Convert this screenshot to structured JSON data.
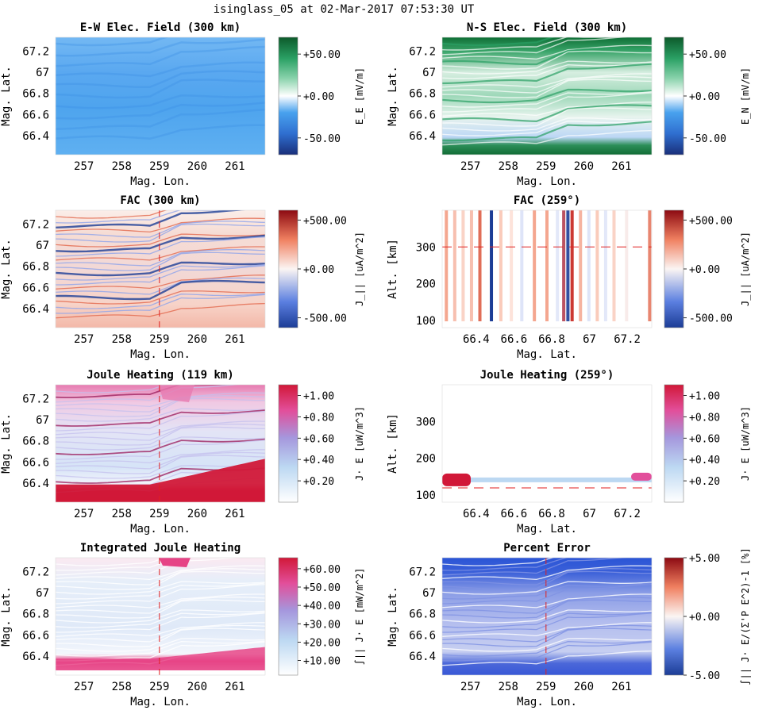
{
  "suptitle": "isinglass_05 at 02-Mar-2017 07:53:30 UT",
  "chart_data": [
    {
      "type": "heatmap",
      "title": "E-W Elec. Field (300 km)",
      "xlabel": "Mag. Lon.",
      "ylabel": "Mag. Lat.",
      "xticks": [
        "257",
        "258",
        "259",
        "260",
        "261"
      ],
      "yticks": [
        "66.4",
        "66.6",
        "66.8",
        "67",
        "67.2"
      ],
      "xlim": [
        256.25,
        261.8
      ],
      "ylim": [
        66.22,
        67.33
      ],
      "colormap": "blue-white-green",
      "colorbar": {
        "label": "E_E [mV/m]",
        "ticks": [
          "+50.00",
          "+0.00",
          "-50.00"
        ],
        "range": [
          -70,
          70
        ]
      },
      "field_values": {
        "mean": -30,
        "north_band": -35,
        "south_band": -25
      }
    },
    {
      "type": "heatmap",
      "title": "N-S Elec. Field (300 km)",
      "xlabel": "Mag. Lon.",
      "ylabel": "Mag. Lat.",
      "xticks": [
        "257",
        "258",
        "259",
        "260",
        "261"
      ],
      "yticks": [
        "66.4",
        "66.6",
        "66.8",
        "67",
        "67.2"
      ],
      "xlim": [
        256.25,
        261.8
      ],
      "ylim": [
        66.22,
        67.33
      ],
      "colormap": "blue-white-green",
      "colorbar": {
        "label": "E_N [mV/m]",
        "ticks": [
          "+50.00",
          "+0.00",
          "-50.00"
        ],
        "range": [
          -70,
          70
        ]
      },
      "field_values": {
        "north_band": 60,
        "middle": 15,
        "south_band": 55
      }
    },
    {
      "type": "heatmap",
      "title": "FAC (300 km)",
      "xlabel": "Mag. Lon.",
      "ylabel": "Mag. Lat.",
      "xticks": [
        "257",
        "258",
        "259",
        "260",
        "261"
      ],
      "yticks": [
        "66.4",
        "66.6",
        "66.8",
        "67",
        "67.2"
      ],
      "xlim": [
        256.25,
        261.8
      ],
      "ylim": [
        66.22,
        67.33
      ],
      "colormap": "blue-white-red",
      "colorbar": {
        "label": "J_|| [uA/m^2]",
        "ticks": [
          "+500.00",
          "+0.00",
          "-500.00"
        ],
        "range": [
          -600,
          600
        ]
      },
      "cut_line": {
        "lon": 259
      }
    },
    {
      "type": "heatmap",
      "title": "FAC (259°)",
      "xlabel": "Mag. Lat.",
      "ylabel": "Alt. [km]",
      "xticks": [
        "66.4",
        "66.6",
        "66.8",
        "67",
        "67.2"
      ],
      "yticks": [
        "100",
        "200",
        "300"
      ],
      "xlim": [
        66.22,
        67.33
      ],
      "ylim": [
        80,
        400
      ],
      "colormap": "blue-white-red",
      "colorbar": {
        "label": "J_|| [uA/m^2]",
        "ticks": [
          "+500.00",
          "+0.00",
          "-500.00"
        ],
        "range": [
          -600,
          600
        ]
      },
      "cut_line": {
        "alt": 300
      }
    },
    {
      "type": "heatmap",
      "title": "Joule Heating (119 km)",
      "xlabel": "Mag. Lon.",
      "ylabel": "Mag. Lat.",
      "xticks": [
        "257",
        "258",
        "259",
        "260",
        "261"
      ],
      "yticks": [
        "66.4",
        "66.6",
        "66.8",
        "67",
        "67.2"
      ],
      "xlim": [
        256.25,
        261.8
      ],
      "ylim": [
        66.22,
        67.33
      ],
      "colormap": "white-blue-red",
      "colorbar": {
        "label": "J· E [uW/m^3]",
        "ticks": [
          "+1.00",
          "+0.80",
          "+0.60",
          "+0.40",
          "+0.20"
        ],
        "range": [
          0,
          1.1
        ]
      },
      "cut_line": {
        "lon": 259
      }
    },
    {
      "type": "heatmap",
      "title": "Joule Heating (259°)",
      "xlabel": "Mag. Lat.",
      "ylabel": "Alt. [km]",
      "xticks": [
        "66.4",
        "66.6",
        "66.8",
        "67",
        "67.2"
      ],
      "yticks": [
        "100",
        "200",
        "300"
      ],
      "xlim": [
        66.22,
        67.33
      ],
      "ylim": [
        80,
        400
      ],
      "colormap": "white-blue-red",
      "colorbar": {
        "label": "J· E [uW/m^3]",
        "ticks": [
          "+1.00",
          "+0.80",
          "+0.60",
          "+0.40",
          "+0.20"
        ],
        "range": [
          0,
          1.1
        ]
      },
      "cut_line": {
        "alt": 119
      }
    },
    {
      "type": "heatmap",
      "title": "Integrated Joule Heating",
      "xlabel": "Mag. Lon.",
      "ylabel": "Mag. Lat.",
      "xticks": [
        "257",
        "258",
        "259",
        "260",
        "261"
      ],
      "yticks": [
        "66.4",
        "66.6",
        "66.8",
        "67",
        "67.2"
      ],
      "xlim": [
        256.25,
        261.8
      ],
      "ylim": [
        66.22,
        67.33
      ],
      "colormap": "white-blue-red",
      "colorbar": {
        "label": "∫|| J· E [mW/m^2]",
        "ticks": [
          "+60.00",
          "+50.00",
          "+40.00",
          "+30.00",
          "+20.00",
          "+10.00"
        ],
        "range": [
          2,
          66
        ]
      },
      "cut_line": {
        "lon": 259
      }
    },
    {
      "type": "heatmap",
      "title": "Percent Error",
      "xlabel": "Mag. Lon.",
      "ylabel": "Mag. Lat.",
      "xticks": [
        "257",
        "258",
        "259",
        "260",
        "261"
      ],
      "yticks": [
        "66.4",
        "66.6",
        "66.8",
        "67",
        "67.2"
      ],
      "xlim": [
        256.25,
        261.8
      ],
      "ylim": [
        66.22,
        67.33
      ],
      "colormap": "blue-white-red",
      "colorbar": {
        "label": "∫|| J· E/(Σ'P E^2)-1 [%]",
        "ticks": [
          "+5.00",
          "+0.00",
          "-5.00"
        ],
        "range": [
          -5,
          5
        ]
      },
      "cut_line": {
        "lon": 259
      }
    }
  ]
}
